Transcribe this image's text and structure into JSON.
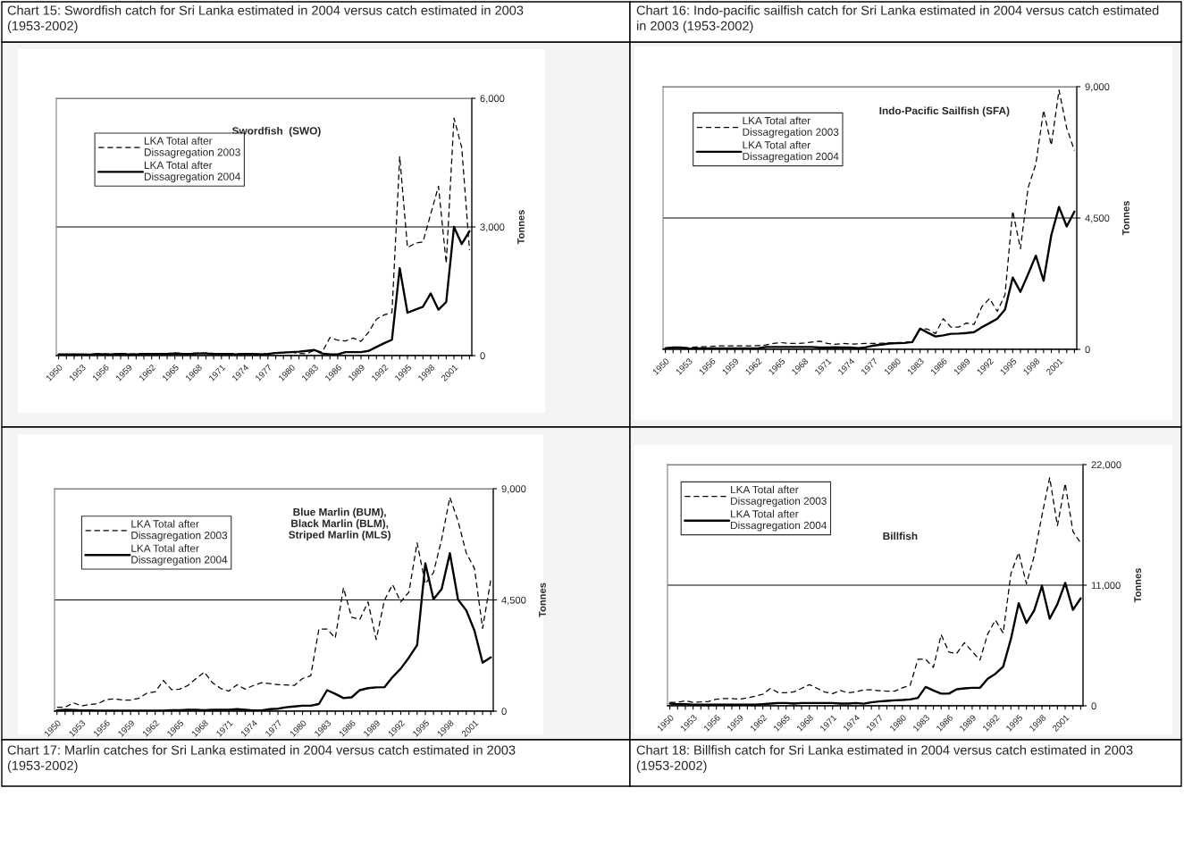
{
  "chart_data": [
    {
      "type": "line",
      "title": "Chart 15: Swordfish catch for Sri Lanka estimated in 2004 versus catch estimated in 2003 (1953-2002)",
      "subtitle": "Swordfish  (SWO)",
      "ylabel": "Tonnes",
      "categories": [
        "1950",
        null,
        null,
        "1953",
        null,
        null,
        "1956",
        null,
        null,
        "1959",
        null,
        null,
        "1962",
        null,
        null,
        "1965",
        null,
        null,
        "1968",
        null,
        null,
        "1971",
        null,
        null,
        "1974",
        null,
        null,
        "1977",
        null,
        null,
        "1980",
        null,
        null,
        "1983",
        null,
        null,
        "1986",
        null,
        null,
        "1989",
        null,
        null,
        "1992",
        null,
        null,
        "1995",
        null,
        null,
        "1998",
        null,
        null,
        "2001",
        null,
        null
      ],
      "series": [
        {
          "name": "LKA Total after Dissagregation 2003",
          "color": "#000000",
          "line_style": "dashed",
          "values": [
            20,
            30,
            30,
            30,
            20,
            40,
            40,
            40,
            50,
            40,
            40,
            50,
            50,
            50,
            50,
            60,
            50,
            50,
            60,
            60,
            50,
            50,
            50,
            40,
            50,
            50,
            40,
            40,
            60,
            70,
            80,
            50,
            40,
            130,
            80,
            420,
            360,
            340,
            410,
            330,
            550,
            850,
            950,
            1000,
            4640,
            2520,
            2620,
            2650,
            3300,
            3950,
            2150,
            5540,
            4850,
            2460
          ]
        },
        {
          "name": "LKA Total after Dissagregation 2004",
          "color": "#000000",
          "line_style": "solid",
          "values": [
            30,
            30,
            30,
            30,
            20,
            40,
            30,
            30,
            40,
            30,
            30,
            40,
            40,
            40,
            40,
            50,
            40,
            40,
            50,
            50,
            40,
            40,
            40,
            30,
            40,
            40,
            30,
            40,
            60,
            70,
            80,
            90,
            110,
            130,
            50,
            30,
            30,
            80,
            80,
            80,
            110,
            200,
            290,
            370,
            2040,
            1000,
            1070,
            1140,
            1450,
            1070,
            1250,
            3000,
            2600,
            2900
          ]
        }
      ],
      "ylim": [
        0,
        6000
      ],
      "yticks": [
        0,
        {
          "value": 3000,
          "label": "3,000"
        },
        {
          "value": 6000,
          "label": "6,000"
        }
      ],
      "grid": "y",
      "legend": "top left"
    },
    {
      "type": "line",
      "title": "Chart 16: Indo-pacific sailfish catch for Sri Lanka estimated in 2004 versus catch estimated in 2003 (1953-2002)",
      "subtitle": "Indo-Pacific Sailfish (SFA)",
      "ylabel": "Tonnes",
      "categories": [
        "1950",
        null,
        null,
        "1953",
        null,
        null,
        "1956",
        null,
        null,
        "1959",
        null,
        null,
        "1962",
        null,
        null,
        "1965",
        null,
        null,
        "1968",
        null,
        null,
        "1971",
        null,
        null,
        "1974",
        null,
        null,
        "1977",
        null,
        null,
        "1980",
        null,
        null,
        "1983",
        null,
        null,
        "1986",
        null,
        null,
        "1989",
        null,
        null,
        "1992",
        null,
        null,
        "1995",
        null,
        null,
        "1998",
        null,
        null,
        "2001",
        null,
        null
      ],
      "series": [
        {
          "name": "LKA Total after Dissagregation 2003",
          "color": "#000000",
          "line_style": "dashed",
          "values": [
            50,
            60,
            70,
            60,
            80,
            90,
            100,
            120,
            120,
            120,
            120,
            120,
            130,
            150,
            200,
            230,
            200,
            200,
            220,
            250,
            280,
            200,
            170,
            200,
            180,
            190,
            200,
            200,
            210,
            220,
            230,
            240,
            250,
            710,
            690,
            540,
            1050,
            760,
            760,
            900,
            850,
            1460,
            1740,
            1300,
            1870,
            4740,
            3450,
            5540,
            6350,
            8190,
            6990,
            8880,
            7580,
            6810
          ]
        },
        {
          "name": "LKA Total after Dissagregation 2004",
          "color": "#000000",
          "line_style": "solid",
          "values": [
            30,
            60,
            60,
            20,
            30,
            30,
            30,
            30,
            30,
            30,
            30,
            30,
            30,
            80,
            80,
            80,
            80,
            80,
            80,
            80,
            60,
            60,
            70,
            60,
            60,
            40,
            70,
            130,
            160,
            200,
            210,
            220,
            250,
            710,
            570,
            440,
            480,
            530,
            540,
            560,
            590,
            760,
            900,
            1050,
            1360,
            2460,
            1970,
            2580,
            3210,
            2350,
            3910,
            4880,
            4210,
            4720
          ]
        }
      ],
      "ylim": [
        0,
        9000
      ],
      "yticks": [
        0,
        {
          "value": 4500,
          "label": "4,500"
        },
        {
          "value": 9000,
          "label": "9,000"
        }
      ],
      "grid": "y",
      "legend": "top left"
    },
    {
      "type": "line",
      "title": "Chart 17: Marlin catches for Sri Lanka estimated in 2004 versus catch estimated in 2003 (1953-2002)",
      "subtitle": "Blue Marlin (BUM), Black Marlin (BLM), Striped Marlin (MLS)",
      "ylabel": "Tonnes",
      "categories": [
        "1950",
        null,
        null,
        "1953",
        null,
        null,
        "1956",
        null,
        null,
        "1959",
        null,
        null,
        "1962",
        null,
        null,
        "1965",
        null,
        null,
        "1968",
        null,
        null,
        "1971",
        null,
        null,
        "1974",
        null,
        null,
        "1977",
        null,
        null,
        "1980",
        null,
        null,
        "1983",
        null,
        null,
        "1986",
        null,
        null,
        "1989",
        null,
        null,
        "1992",
        null,
        null,
        "1995",
        null,
        null,
        "1998",
        null,
        null,
        "2001",
        null,
        null
      ],
      "series": [
        {
          "name": "LKA Total after Dissagregation 2003",
          "color": "#000000",
          "line_style": "dashed",
          "values": [
            160,
            160,
            340,
            210,
            270,
            300,
            470,
            500,
            450,
            450,
            520,
            730,
            780,
            1240,
            870,
            890,
            1040,
            1320,
            1580,
            1150,
            920,
            810,
            1070,
            890,
            1040,
            1150,
            1120,
            1070,
            1060,
            1040,
            1320,
            1430,
            3320,
            3320,
            2960,
            4990,
            3800,
            3710,
            4420,
            2900,
            4480,
            5120,
            4420,
            4820,
            6810,
            5150,
            5610,
            6960,
            8650,
            7690,
            6400,
            5780,
            3350,
            5320
          ]
        },
        {
          "name": "LKA Total after Dissagregation 2004",
          "color": "#000000",
          "line_style": "solid",
          "values": [
            30,
            60,
            50,
            30,
            30,
            20,
            20,
            20,
            20,
            20,
            20,
            20,
            20,
            20,
            40,
            40,
            60,
            60,
            40,
            60,
            60,
            60,
            80,
            60,
            30,
            30,
            80,
            100,
            160,
            190,
            220,
            220,
            290,
            850,
            700,
            530,
            560,
            850,
            930,
            960,
            970,
            1380,
            1720,
            2170,
            2670,
            5980,
            4530,
            4940,
            6390,
            4510,
            4080,
            3260,
            1960,
            2180
          ]
        }
      ],
      "ylim": [
        0,
        9000
      ],
      "yticks": [
        0,
        {
          "value": 4500,
          "label": "4,500"
        },
        {
          "value": 9000,
          "label": "9,000"
        }
      ],
      "grid": "y",
      "legend": "top left"
    },
    {
      "type": "line",
      "title": "Chart 18: Billfish catch for Sri Lanka estimated in 2004 versus catch estimated in 2003 (1953-2002)",
      "subtitle": "Billfish",
      "ylabel": "Tonnes",
      "categories": [
        "1950",
        null,
        null,
        "1953",
        null,
        null,
        "1956",
        null,
        null,
        "1959",
        null,
        null,
        "1962",
        null,
        null,
        "1965",
        null,
        null,
        "1968",
        null,
        null,
        "1971",
        null,
        null,
        "1974",
        null,
        null,
        "1977",
        null,
        null,
        "1980",
        null,
        null,
        "1983",
        null,
        null,
        "1986",
        null,
        null,
        "1989",
        null,
        null,
        "1992",
        null,
        null,
        "1995",
        null,
        null,
        "1998",
        null,
        null,
        "2001",
        null,
        null
      ],
      "series": [
        {
          "name": "LKA Total after Dissagregation 2003",
          "color": "#000000",
          "line_style": "dashed",
          "values": [
            320,
            320,
            450,
            320,
            350,
            400,
            610,
            660,
            660,
            610,
            720,
            870,
            1060,
            1590,
            1190,
            1190,
            1270,
            1590,
            1930,
            1590,
            1250,
            1110,
            1400,
            1190,
            1270,
            1460,
            1460,
            1380,
            1330,
            1330,
            1640,
            1860,
            4240,
            4240,
            3500,
            6490,
            4900,
            4770,
            5750,
            4960,
            4160,
            6550,
            7820,
            6630,
            12060,
            13970,
            11130,
            13650,
            17360,
            20800,
            16430,
            20270,
            15900,
            14840
          ]
        },
        {
          "name": "LKA Total after Dissagregation 2004",
          "color": "#000000",
          "line_style": "solid",
          "values": [
            200,
            150,
            150,
            100,
            100,
            100,
            100,
            100,
            100,
            100,
            100,
            100,
            150,
            200,
            250,
            250,
            200,
            250,
            250,
            250,
            250,
            250,
            200,
            200,
            250,
            190,
            320,
            400,
            450,
            500,
            530,
            580,
            720,
            1720,
            1400,
            1110,
            1110,
            1510,
            1590,
            1640,
            1640,
            2460,
            2920,
            3580,
            6100,
            9350,
            7550,
            8690,
            10940,
            7950,
            9280,
            11210,
            8750,
            9800
          ]
        }
      ],
      "ylim": [
        0,
        22000
      ],
      "yticks": [
        0,
        {
          "value": 11000,
          "label": "11,000"
        },
        {
          "value": 22000,
          "label": "22,000"
        }
      ],
      "grid": "y",
      "legend": "top left"
    }
  ]
}
